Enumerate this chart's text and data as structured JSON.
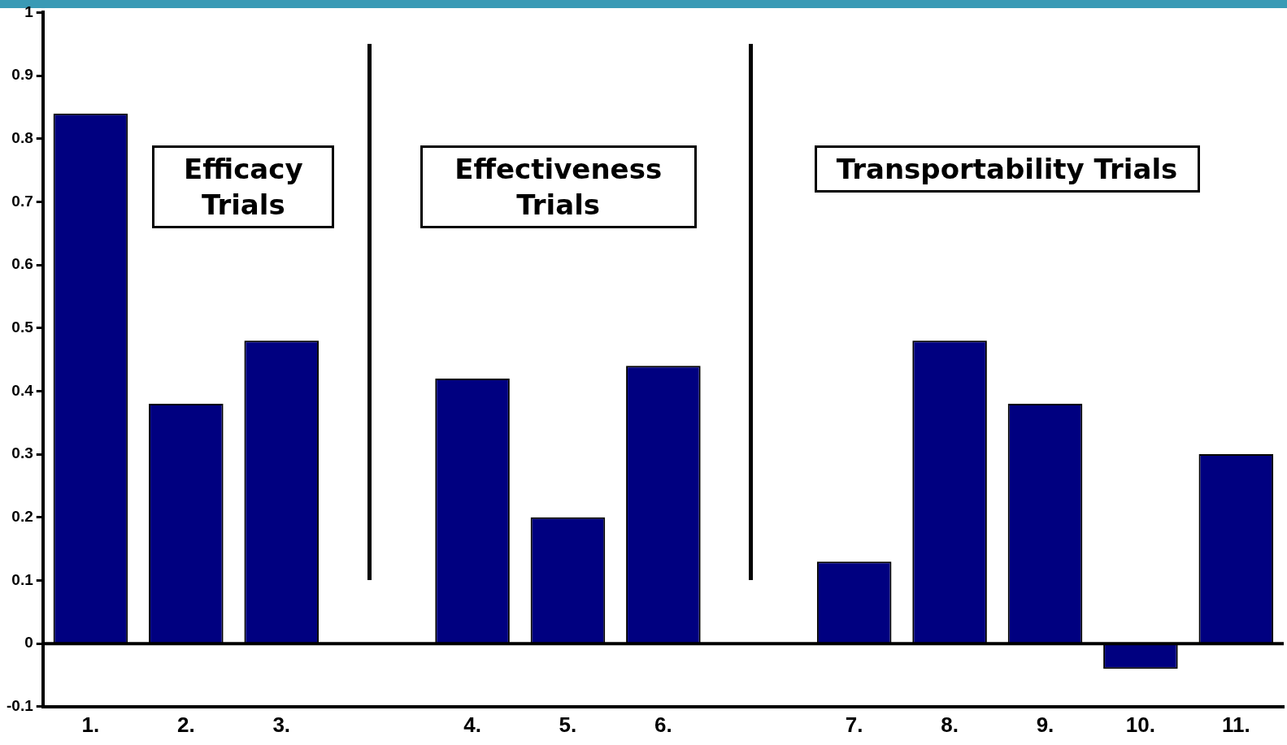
{
  "chart_data": {
    "type": "bar",
    "categories": [
      "1.",
      "2.",
      "3.",
      null,
      "4.",
      "5.",
      "6.",
      null,
      "7.",
      "8.",
      "9.",
      "10.",
      "11."
    ],
    "values": [
      0.84,
      0.38,
      0.48,
      null,
      0.42,
      0.2,
      0.44,
      null,
      0.13,
      0.48,
      0.38,
      -0.04,
      0.3
    ],
    "color": "#000080",
    "ylim": [
      -0.1,
      1
    ],
    "yticks": [
      -0.1,
      0,
      0.1,
      0.2,
      0.3,
      0.4,
      0.5,
      0.6,
      0.7,
      0.8,
      0.9,
      1
    ],
    "annotations": [
      "Efficacy Trials",
      "Effectiveness Trials",
      "Transportability Trials"
    ]
  }
}
